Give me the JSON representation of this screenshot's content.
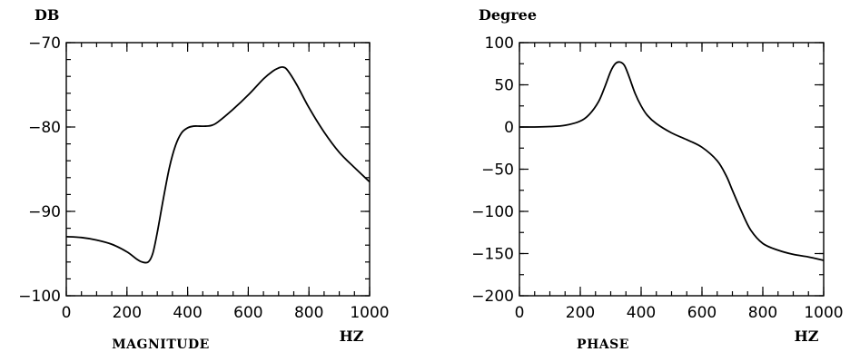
{
  "chart_data": [
    {
      "type": "line",
      "title": "",
      "xlabel": "MAGNITUDE",
      "xunit": "HZ",
      "ylabel": "DB",
      "xlim": [
        0,
        1000
      ],
      "ylim": [
        -100,
        -70
      ],
      "xticks": [
        0,
        200,
        400,
        600,
        800,
        1000
      ],
      "yticks": [
        -70,
        -80,
        -90,
        -100
      ],
      "grid": false,
      "series": [
        {
          "x": [
            0,
            50,
            100,
            150,
            200,
            230,
            250,
            270,
            285,
            300,
            320,
            340,
            360,
            380,
            400,
            420,
            440,
            460,
            480,
            500,
            550,
            600,
            650,
            680,
            700,
            715,
            730,
            760,
            800,
            850,
            900,
            950,
            1000
          ],
          "y": [
            -93.0,
            -93.1,
            -93.4,
            -93.9,
            -94.8,
            -95.6,
            -96.0,
            -96.0,
            -95.0,
            -92.5,
            -88.5,
            -84.8,
            -82.2,
            -80.7,
            -80.1,
            -79.9,
            -79.9,
            -79.9,
            -79.8,
            -79.4,
            -77.9,
            -76.2,
            -74.3,
            -73.4,
            -73.0,
            -72.9,
            -73.3,
            -75.0,
            -77.7,
            -80.6,
            -83.0,
            -84.8,
            -86.5
          ]
        }
      ]
    },
    {
      "type": "line",
      "title": "",
      "xlabel": "PHASE",
      "xunit": "HZ",
      "ylabel": "Degree",
      "xlim": [
        0,
        1000
      ],
      "ylim": [
        -200,
        100
      ],
      "xticks": [
        0,
        200,
        400,
        600,
        800,
        1000
      ],
      "yticks": [
        100,
        50,
        0,
        -50,
        -100,
        -150,
        -200
      ],
      "grid": false,
      "series": [
        {
          "x": [
            0,
            50,
            100,
            150,
            200,
            230,
            260,
            280,
            300,
            315,
            330,
            345,
            360,
            380,
            400,
            420,
            450,
            500,
            550,
            600,
            650,
            680,
            700,
            730,
            760,
            800,
            850,
            900,
            950,
            1000
          ],
          "y": [
            0,
            0,
            0.5,
            2,
            7,
            15,
            30,
            47,
            66,
            75,
            77,
            73,
            60,
            40,
            25,
            14,
            4,
            -7,
            -15,
            -24,
            -40,
            -58,
            -75,
            -100,
            -122,
            -138,
            -146,
            -151,
            -154,
            -158
          ]
        }
      ]
    }
  ]
}
